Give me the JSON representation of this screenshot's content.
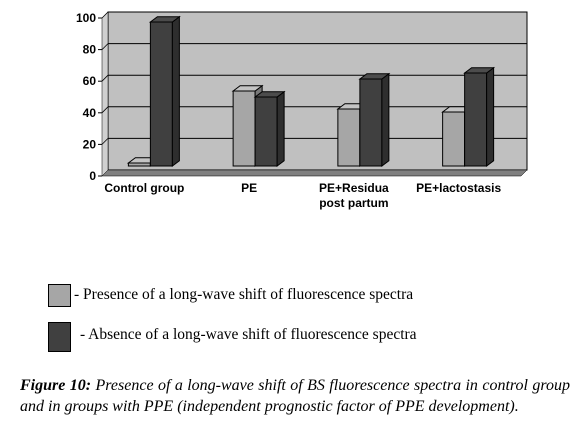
{
  "chart_data": {
    "type": "bar",
    "categories": [
      "Control group",
      "PE",
      "PE+Residua\npost partum",
      "PE+lactostasis"
    ],
    "series": [
      {
        "name": "- Presence of a long-wave shift of fluorescence spectra",
        "values": [
          2,
          50,
          38,
          36
        ],
        "color": "#a6a6a6"
      },
      {
        "name": "- Absence of a long-wave shift of fluorescence spectra",
        "values": [
          96,
          46,
          58,
          62
        ],
        "color": "#404040"
      }
    ],
    "ylim": [
      0,
      100
    ],
    "yticks": [
      0,
      20,
      40,
      60,
      80,
      100
    ],
    "grid": true,
    "plot_background": "#c0c0c0",
    "legend_placement": "bottom"
  },
  "caption": {
    "label": "Figure 10:",
    "text": "Presence of a long-wave shift of BS fluorescence spectra in control group and in groups with PPE (independent prognostic factor of PPE development)."
  }
}
